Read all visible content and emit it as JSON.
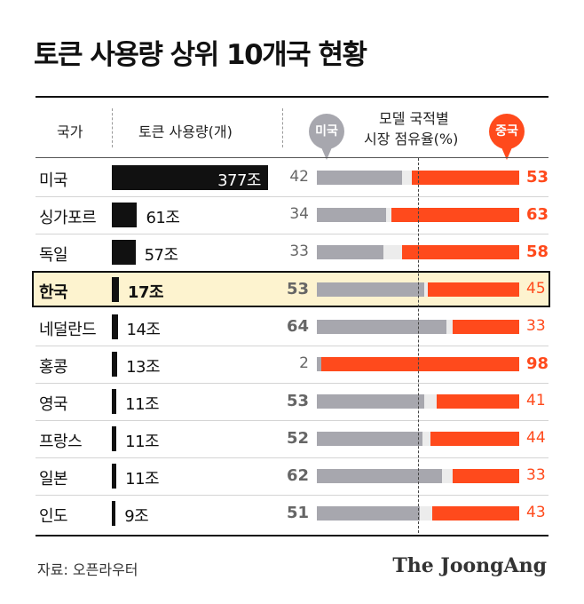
{
  "title": "토큰 사용량 상위 10개국 현황",
  "headers": {
    "country": "국가",
    "token_usage": "토큰 사용량(개)",
    "share_line1": "모델 국적별",
    "share_line2": "시장 점유율(%)"
  },
  "bubbles": {
    "us": "미국",
    "china": "중국"
  },
  "source": "자료: 오픈라우터",
  "brand": "The JoongAng",
  "highlight_country": "한국",
  "colors": {
    "us": "#a7a7ae",
    "china": "#ff4a1c",
    "token": "#111111",
    "highlight": "#fdf3cf"
  },
  "chart_data": {
    "type": "bar",
    "categories": [
      "미국",
      "싱가포르",
      "독일",
      "한국",
      "네덜란드",
      "홍콩",
      "영국",
      "프랑스",
      "일본",
      "인도"
    ],
    "token_labels": [
      "377조",
      "61조",
      "57조",
      "17조",
      "14조",
      "13조",
      "11조",
      "11조",
      "11조",
      "9조"
    ],
    "series": [
      {
        "name": "토큰 사용량(개)",
        "values": [
          377,
          61,
          57,
          17,
          14,
          13,
          11,
          11,
          11,
          9
        ]
      },
      {
        "name": "미국",
        "values": [
          42,
          34,
          33,
          53,
          64,
          2,
          53,
          52,
          62,
          51
        ]
      },
      {
        "name": "중국",
        "values": [
          53,
          63,
          58,
          45,
          33,
          98,
          41,
          44,
          33,
          43
        ]
      }
    ]
  }
}
